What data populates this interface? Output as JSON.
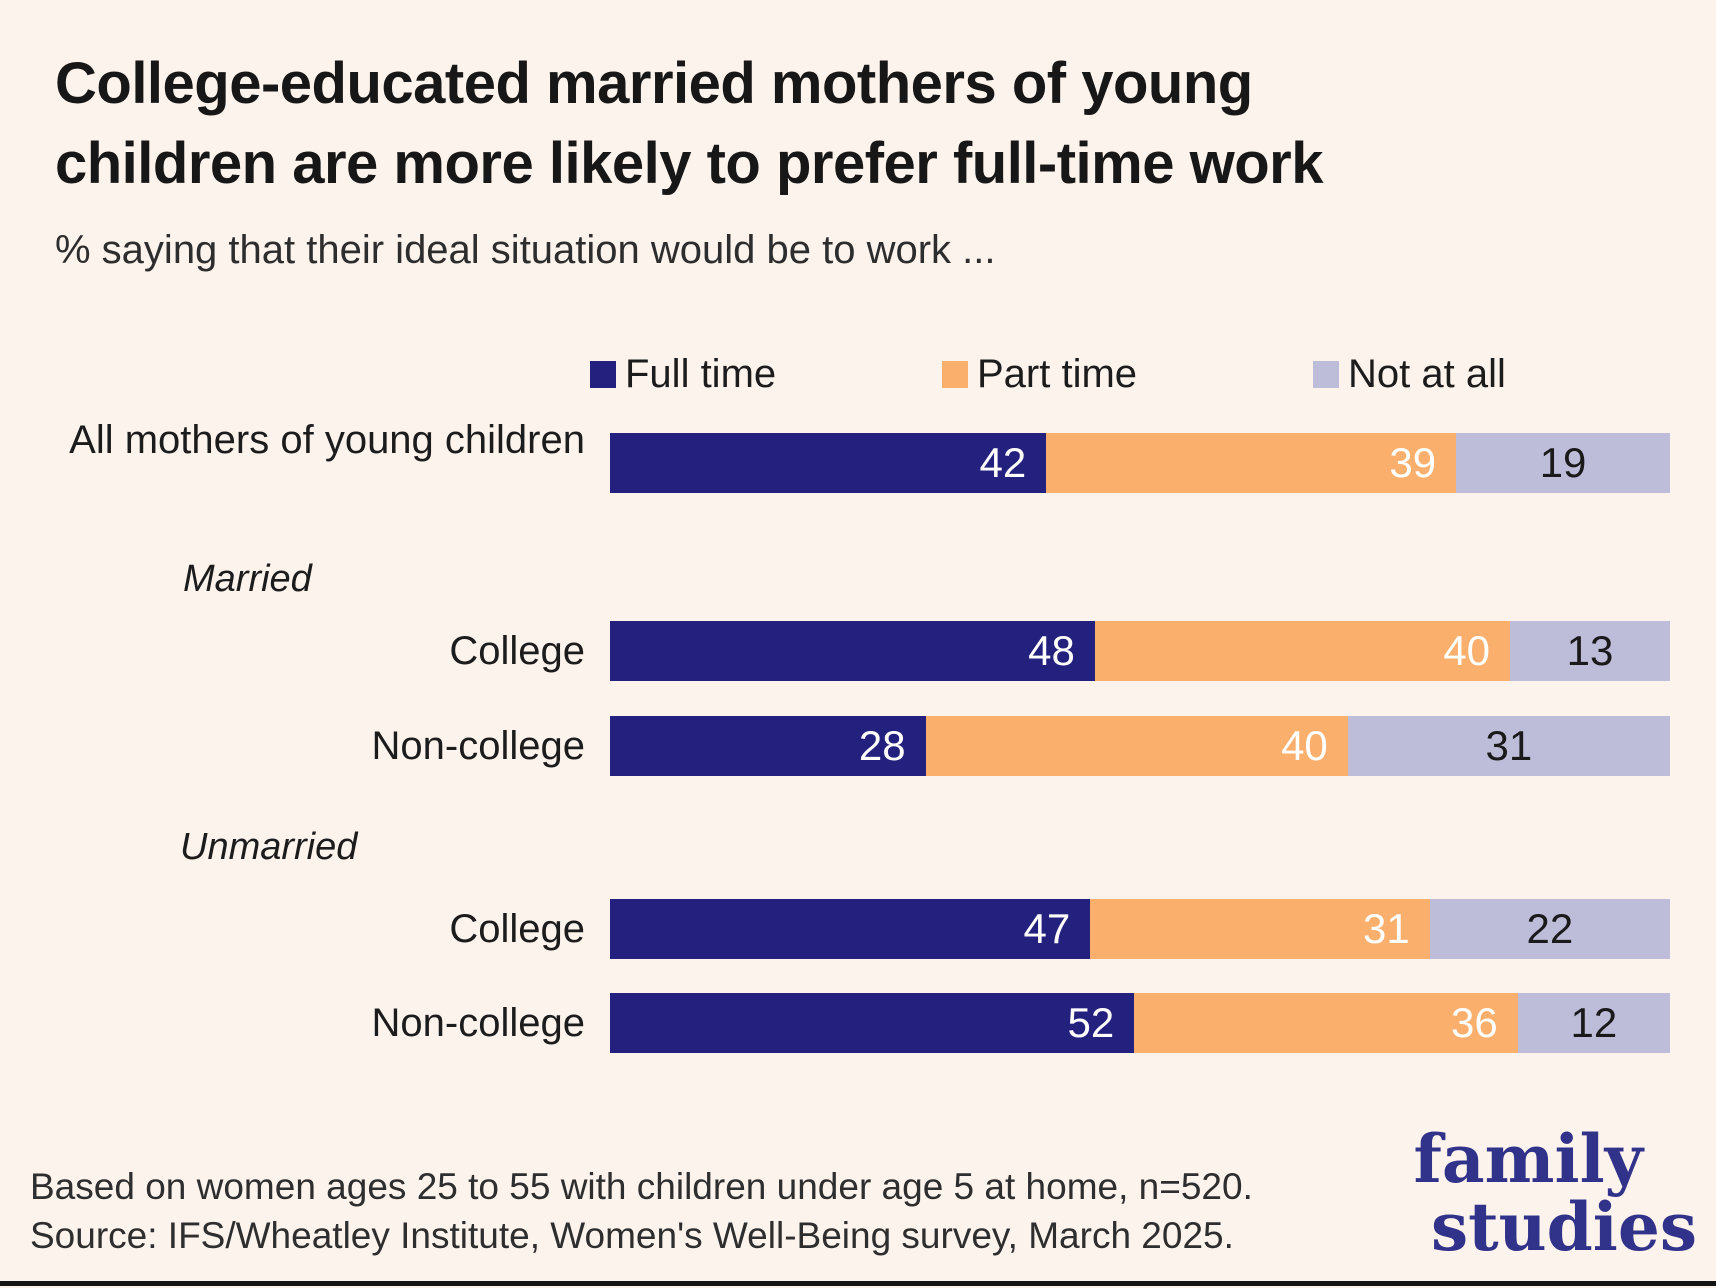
{
  "title_lines": [
    "College-educated married mothers of young",
    "children are more likely to prefer full-time work"
  ],
  "subtitle": "% saying that their ideal situation would be to work ...",
  "chart_data": {
    "type": "bar",
    "orientation": "horizontal",
    "stacked": true,
    "units": "percent",
    "xlim": [
      0,
      100
    ],
    "grid": false,
    "legend_position": "top",
    "categories": [
      "All mothers of young children",
      "College",
      "Non-college",
      "College",
      "Non-college"
    ],
    "groups": [
      {
        "label": "Married",
        "row_indexes": [
          1,
          2
        ]
      },
      {
        "label": "Unmarried",
        "row_indexes": [
          3,
          4
        ]
      }
    ],
    "series": [
      {
        "name": "Full time",
        "color": "#23207E",
        "value_text_color": "#ffffff",
        "values": [
          42,
          48,
          28,
          47,
          52
        ]
      },
      {
        "name": "Part time",
        "color": "#FAAF6D",
        "value_text_color": "#ffffff",
        "values": [
          39,
          40,
          40,
          31,
          36
        ]
      },
      {
        "name": "Not at all",
        "color": "#BDBDDA",
        "value_text_color": "#1a1a1a",
        "values": [
          19,
          13,
          31,
          22,
          12
        ]
      }
    ]
  },
  "colors": {
    "background": "#FCF3EC",
    "title_text": "#171717",
    "logo_navy": "#31338B",
    "bottom_rule": "#141414"
  },
  "footer": {
    "line1": "Based on women ages 25 to 55 with children under age 5 at home, n=520.",
    "line2": "Source: IFS/Wheatley Institute, Women's Well-Being survey, March 2025."
  },
  "logo": {
    "line1": "family",
    "line2": "studies"
  }
}
